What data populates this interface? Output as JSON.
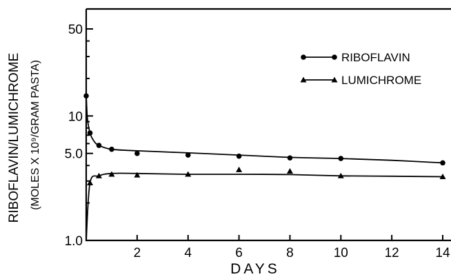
{
  "chart_data": {
    "type": "line",
    "xlabel": "DAYS",
    "ylabel": "RIBOFLAVIN/LUMICHROME",
    "ylabel_units": "(MOLES X 10⁹/GRAM PASTA)",
    "y_scale": "log",
    "xlim": [
      0,
      14
    ],
    "ylim": [
      1.0,
      70
    ],
    "x_ticks": [
      2,
      4,
      6,
      8,
      10,
      12,
      14
    ],
    "x_tick_labels": [
      "2",
      "4",
      "6",
      "8",
      "10",
      "12",
      "14"
    ],
    "y_ticks": [
      1.0,
      5.0,
      10,
      50
    ],
    "y_tick_labels": [
      "1.0",
      "5.0",
      "10",
      "50"
    ],
    "grid": false,
    "legend_position": "top-right",
    "series": [
      {
        "name": "RIBOFLAVIN",
        "marker": "circle",
        "points": [
          [
            0,
            14.5
          ],
          [
            0.15,
            7.3
          ],
          [
            0.5,
            5.8
          ],
          [
            1,
            5.4
          ],
          [
            2,
            5.0
          ],
          [
            4,
            4.85
          ],
          [
            6,
            4.75
          ],
          [
            8,
            4.6
          ],
          [
            10,
            4.55
          ],
          [
            14,
            4.2
          ]
        ],
        "curve": [
          [
            0,
            14.5
          ],
          [
            0.05,
            9.5
          ],
          [
            0.15,
            7.3
          ],
          [
            0.3,
            6.3
          ],
          [
            0.5,
            5.8
          ],
          [
            1,
            5.4
          ],
          [
            2,
            5.25
          ],
          [
            4,
            5.05
          ],
          [
            6,
            4.85
          ],
          [
            8,
            4.65
          ],
          [
            10,
            4.55
          ],
          [
            12,
            4.4
          ],
          [
            14,
            4.2
          ]
        ]
      },
      {
        "name": "LUMICHROME",
        "marker": "triangle",
        "points": [
          [
            0.15,
            2.9
          ],
          [
            0.5,
            3.3
          ],
          [
            1,
            3.4
          ],
          [
            2,
            3.35
          ],
          [
            4,
            3.4
          ],
          [
            6,
            3.7
          ],
          [
            8,
            3.6
          ],
          [
            10,
            3.3
          ],
          [
            14,
            3.25
          ]
        ],
        "curve": [
          [
            0,
            1.0
          ],
          [
            0.15,
            2.9
          ],
          [
            0.5,
            3.3
          ],
          [
            1,
            3.45
          ],
          [
            2,
            3.45
          ],
          [
            4,
            3.4
          ],
          [
            6,
            3.4
          ],
          [
            8,
            3.38
          ],
          [
            10,
            3.3
          ],
          [
            12,
            3.28
          ],
          [
            14,
            3.25
          ]
        ]
      }
    ]
  }
}
